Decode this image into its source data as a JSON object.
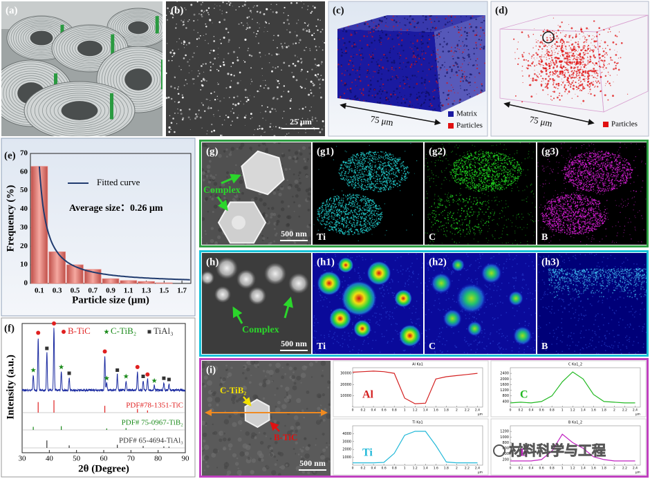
{
  "panels": {
    "a": {
      "label": "(a)"
    },
    "b": {
      "label": "(b)",
      "scale_bar": "25 μm"
    },
    "c": {
      "label": "(c)",
      "dimension": "75 μm",
      "legend": [
        {
          "name": "Matrix",
          "color": "#1a1aa0"
        },
        {
          "name": "Particles",
          "color": "#e01010"
        }
      ]
    },
    "d": {
      "label": "(d)",
      "dimension": "75 μm",
      "legend": [
        {
          "name": "Particles",
          "color": "#e01010"
        }
      ]
    },
    "e": {
      "label": "(e)",
      "chart": {
        "type": "histogram",
        "bins": [
          0,
          0.2,
          0.4,
          0.6,
          0.8,
          1,
          1.2,
          1.4,
          1.6
        ],
        "values": [
          63,
          17,
          10,
          7.5,
          2.5,
          1.5,
          1,
          0.3
        ],
        "color": "#e8827a",
        "fit": {
          "name": "Fitted curve",
          "color": "#1f3a6e"
        },
        "annotation": "Average size：0.26 μm",
        "xlabel": "Particle size (μm)",
        "ylabel": "Frequency (%)",
        "xlim": [
          0,
          1.8
        ],
        "xticks": [
          0.1,
          0.3,
          0.5,
          0.7,
          0.9,
          1.1,
          1.3,
          1.5,
          1.7
        ],
        "ylim": [
          0,
          70
        ],
        "yticks": [
          0,
          10,
          20,
          30,
          40,
          50,
          60,
          70
        ]
      }
    },
    "f": {
      "label": "(f)",
      "chart": {
        "type": "xrd",
        "xlabel": "2θ (Degree)",
        "ylabel": "Intensity (a.u.)",
        "xlim": [
          30,
          90
        ],
        "xticks": [
          30,
          40,
          50,
          60,
          70,
          80,
          90
        ],
        "pattern_color": "#1a2aa0",
        "phases": [
          {
            "name": "B-TiC",
            "marker": "circle",
            "color": "#e02020"
          },
          {
            "name": "C-TiB₂",
            "marker": "star",
            "color": "#1a8a1a"
          },
          {
            "name": "TiAl₃",
            "marker": "square",
            "color": "#333333"
          }
        ],
        "references": [
          {
            "name": "PDF#78-1351-TiC",
            "color": "#e02020",
            "peaks": [
              35.9,
              41.7,
              60.4,
              72.4,
              76.1
            ],
            "intensities": [
              85,
              100,
              55,
              30,
              18
            ]
          },
          {
            "name": "PDF# 75-0967-TiB₂",
            "color": "#1a8a1a",
            "peaks": [
              34.1,
              44.4,
              61.1,
              68.2,
              78.6
            ],
            "intensities": [
              25,
              30,
              12,
              15,
              8
            ]
          },
          {
            "name": "PDF# 65-4694-TiAl₃",
            "color": "#333333",
            "peaks": [
              39.1,
              47.3,
              65,
              74.5,
              82.1,
              84
            ],
            "intensities": [
              60,
              20,
              25,
              15,
              12,
              10
            ]
          }
        ]
      }
    },
    "g": {
      "label": "(g)",
      "annotation": "Complex",
      "scale_bar": "500 nm",
      "maps": [
        {
          "label": "(g1)",
          "element": "Ti",
          "color": "#22d3d3"
        },
        {
          "label": "(g2)",
          "element": "C",
          "color": "#22e022"
        },
        {
          "label": "(g3)",
          "element": "B",
          "color": "#e020e0"
        }
      ]
    },
    "h": {
      "label": "(h)",
      "annotation": "Complex",
      "scale_bar": "500 nm",
      "maps": [
        {
          "label": "(h1)",
          "element": "Ti"
        },
        {
          "label": "(h2)",
          "element": "C"
        },
        {
          "label": "(h3)",
          "element": "B"
        }
      ]
    },
    "i": {
      "label": "(i)",
      "phases": [
        "C-TiB₂",
        "B-TiC"
      ],
      "scale_bar": "500 nm",
      "line_scans": [
        {
          "title": "Al Ka1",
          "element": "Al",
          "color": "#d42020",
          "xlim": [
            0,
            2.5
          ],
          "x": [
            0,
            0.2,
            0.4,
            0.6,
            0.8,
            1,
            1.2,
            1.4,
            1.6,
            1.8,
            2,
            2.2,
            2.4
          ],
          "values": [
            31000,
            31500,
            32000,
            31500,
            30000,
            8000,
            3000,
            3500,
            25000,
            27000,
            28000,
            29000,
            30000
          ],
          "ylim": [
            0,
            35000
          ],
          "yticks": [
            10000,
            20000,
            30000
          ],
          "xticks": [
            0,
            0.2,
            0.4,
            0.6,
            0.8,
            1,
            1.2,
            1.4,
            1.6,
            1.8,
            2,
            2.2,
            2.4
          ],
          "unit": "μm"
        },
        {
          "title": "C Ka1_2",
          "element": "C",
          "color": "#20b820",
          "xlim": [
            0,
            2.5
          ],
          "x": [
            0,
            0.2,
            0.4,
            0.6,
            0.8,
            1,
            1.2,
            1.4,
            1.6,
            1.8,
            2,
            2.2,
            2.4
          ],
          "values": [
            300,
            350,
            300,
            400,
            800,
            1800,
            2500,
            2000,
            900,
            400,
            350,
            300,
            300
          ],
          "ylim": [
            0,
            2800
          ],
          "yticks": [
            400,
            800,
            1200,
            1600,
            2000,
            2400
          ],
          "xticks": [
            0,
            0.2,
            0.4,
            0.6,
            0.8,
            1,
            1.2,
            1.4,
            1.6,
            1.8,
            2,
            2.2,
            2.4
          ],
          "unit": "μm"
        },
        {
          "title": "Ti Ka1",
          "element": "Ti",
          "color": "#20b8d8",
          "xlim": [
            0,
            2.5
          ],
          "x": [
            0,
            0.2,
            0.4,
            0.6,
            0.8,
            1,
            1.2,
            1.4,
            1.6,
            1.8,
            2,
            2.2,
            2.4
          ],
          "values": [
            300,
            300,
            300,
            350,
            1500,
            3800,
            4300,
            4300,
            2500,
            400,
            300,
            300,
            300
          ],
          "ylim": [
            0,
            5000
          ],
          "yticks": [
            1000,
            2000,
            3000,
            4000
          ],
          "xticks": [
            0,
            0.2,
            0.4,
            0.6,
            0.8,
            1,
            1.2,
            1.4,
            1.6,
            1.8,
            2,
            2.2,
            2.4
          ],
          "unit": "μm"
        },
        {
          "title": "B Ka1_2",
          "element": "B",
          "color": "#c020c0",
          "xlim": [
            0,
            2.5
          ],
          "x": [
            0,
            0.2,
            0.4,
            0.6,
            0.8,
            1,
            1.2,
            1.4,
            1.6,
            1.8,
            2,
            2.2,
            2.4
          ],
          "values": [
            150,
            150,
            150,
            200,
            500,
            1100,
            800,
            600,
            300,
            200,
            150,
            150,
            150
          ],
          "ylim": [
            0,
            1400
          ],
          "yticks": [
            200,
            400,
            600,
            800,
            1000,
            1200
          ],
          "xticks": [
            0,
            0.2,
            0.4,
            0.6,
            0.8,
            1,
            1.2,
            1.4,
            1.6,
            1.8,
            2,
            2.2,
            2.4
          ],
          "unit": "μm"
        }
      ]
    }
  },
  "watermark": "材料科学与工程"
}
